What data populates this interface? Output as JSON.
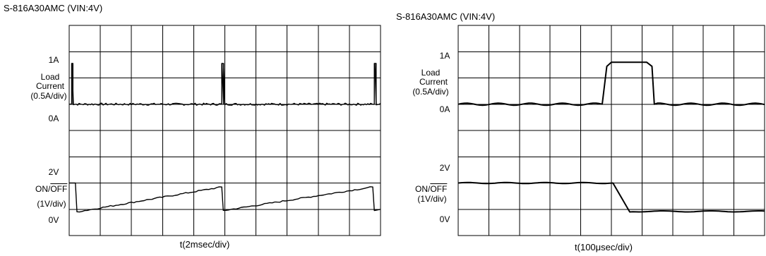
{
  "chart_data": [
    {
      "type": "line",
      "title": "S-816A30AMC (VIN:4V)",
      "xlabel": "t(2msec/div)",
      "x_divisions": 10,
      "y_divisions": 8,
      "grid": true,
      "channels": [
        {
          "name_lines": [
            "Load",
            "Current",
            "(0.5A/div)"
          ],
          "top_label": "1A",
          "bottom_label": "0A",
          "label_row_top": 2,
          "label_row_bottom": 3,
          "baseline_row": 3,
          "unit_per_div": 0.5,
          "pulses": [
            {
              "start": 0.08,
              "end": 0.12,
              "level_div": 1.55
            },
            {
              "start": 4.9,
              "end": 4.96,
              "level_div": 1.55
            },
            {
              "start": 9.8,
              "end": 9.86,
              "level_div": 1.55
            }
          ]
        },
        {
          "name_parts": [
            "ON/",
            "OFF"
          ],
          "scale_text": "(1V/div)",
          "top_label": "2V",
          "bottom_label": "0V",
          "label_row_top": 5,
          "label_row_bottom": 7,
          "baseline_row": 7,
          "unit_per_div": 1,
          "sawtooth": [
            {
              "t": 0.0,
              "v": 1.0
            },
            {
              "t": 0.2,
              "v": 1.0
            },
            {
              "t": 0.25,
              "v": -0.1
            },
            {
              "t": 4.9,
              "v": 0.85
            },
            {
              "t": 4.95,
              "v": -0.05
            },
            {
              "t": 9.75,
              "v": 0.85
            },
            {
              "t": 9.8,
              "v": -0.05
            },
            {
              "t": 10.0,
              "v": 0.0
            }
          ]
        }
      ]
    },
    {
      "type": "line",
      "title": "S-816A30AMC (VIN:4V)",
      "xlabel": "t(100μsec/div)",
      "x_divisions": 10,
      "y_divisions": 8,
      "grid": true,
      "channels": [
        {
          "name_lines": [
            "Load",
            "Current",
            "(0.5A/div)"
          ],
          "top_label": "1A",
          "bottom_label": "0A",
          "label_row_top": 1,
          "label_row_bottom": 3,
          "baseline_row": 3,
          "unit_per_div": 0.5,
          "pulse": {
            "start": 4.7,
            "end": 6.4,
            "level_div": 1.6,
            "rise": 0.3,
            "fall": 0.25
          }
        },
        {
          "name_parts": [
            "ON/",
            "OFF"
          ],
          "scale_text": "(1V/div)",
          "top_label": "2V",
          "bottom_label": "0V",
          "label_row_top": 5,
          "label_row_bottom": 7,
          "baseline_row": 7,
          "unit_per_div": 1,
          "levels": [
            {
              "t": 0.0,
              "v": 1.0
            },
            {
              "t": 5.05,
              "v": 1.0
            },
            {
              "t": 5.6,
              "v": -0.1
            },
            {
              "t": 10.0,
              "v": 0.0
            }
          ]
        }
      ]
    }
  ]
}
